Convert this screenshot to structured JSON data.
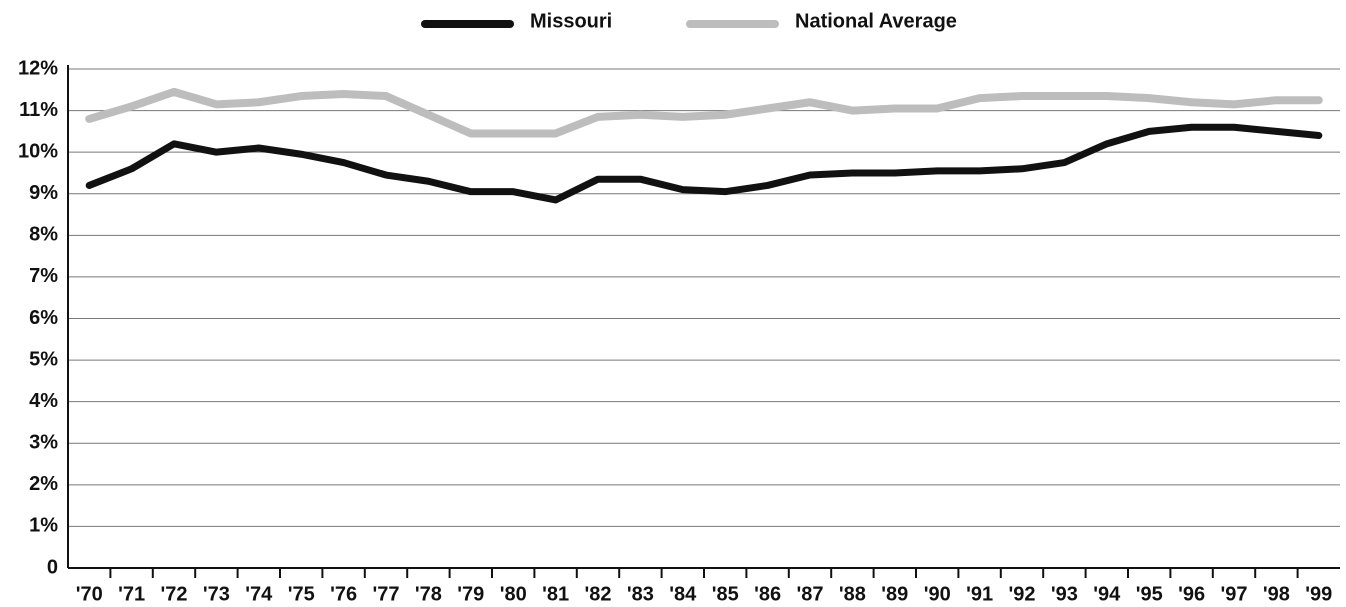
{
  "chart_data": {
    "type": "line",
    "categories": [
      "'70",
      "'71",
      "'72",
      "'73",
      "'74",
      "'75",
      "'76",
      "'77",
      "'78",
      "'79",
      "'80",
      "'81",
      "'82",
      "'83",
      "'84",
      "'85",
      "'86",
      "'87",
      "'88",
      "'89",
      "'90",
      "'91",
      "'92",
      "'93",
      "'94",
      "'95",
      "'96",
      "'97",
      "'98",
      "'99"
    ],
    "series": [
      {
        "name": "Missouri",
        "color": "#111111",
        "values": [
          9.2,
          9.6,
          10.2,
          10.0,
          10.1,
          9.95,
          9.75,
          9.45,
          9.3,
          9.05,
          9.05,
          8.85,
          9.35,
          9.35,
          9.1,
          9.05,
          9.2,
          9.45,
          9.5,
          9.5,
          9.55,
          9.55,
          9.6,
          9.75,
          10.2,
          10.5,
          10.6,
          10.6,
          10.5,
          10.4
        ]
      },
      {
        "name": "National Average",
        "color": "#bdbdbd",
        "values": [
          10.8,
          11.1,
          11.45,
          11.15,
          11.2,
          11.35,
          11.4,
          11.35,
          10.9,
          10.45,
          10.45,
          10.45,
          10.85,
          10.9,
          10.85,
          10.9,
          11.05,
          11.2,
          11.0,
          11.05,
          11.05,
          11.3,
          11.35,
          11.35,
          11.35,
          11.3,
          11.2,
          11.15,
          11.25,
          11.25
        ]
      }
    ],
    "ylim": [
      0,
      12
    ],
    "yticks": [
      0,
      {
        "value": 1,
        "label": "1%"
      },
      {
        "value": 2,
        "label": "2%"
      },
      {
        "value": 3,
        "label": "3%"
      },
      {
        "value": 4,
        "label": "4%"
      },
      {
        "value": 5,
        "label": "5%"
      },
      {
        "value": 6,
        "label": "6%"
      },
      {
        "value": 7,
        "label": "7%"
      },
      {
        "value": 8,
        "label": "8%"
      },
      {
        "value": 9,
        "label": "9%"
      },
      {
        "value": 10,
        "label": "10%"
      },
      {
        "value": 11,
        "label": "11%"
      },
      {
        "value": 12,
        "label": "12%"
      }
    ],
    "grid": true,
    "legend": "top"
  }
}
